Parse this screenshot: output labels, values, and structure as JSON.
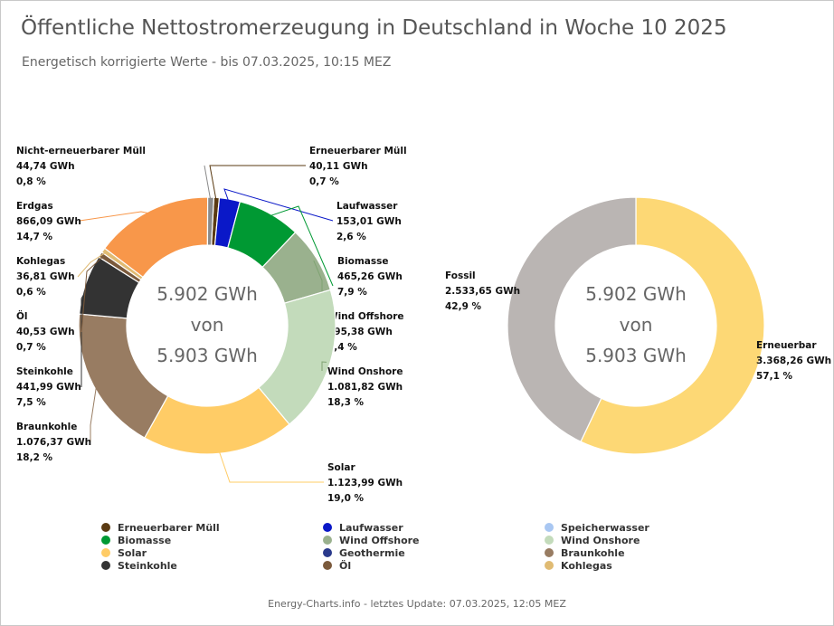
{
  "title": "Öffentliche Nettostromerzeugung in Deutschland in Woche 10 2025",
  "subtitle": "Energetisch korrigierte Werte - bis 07.03.2025, 10:15 MEZ",
  "footer": "Energy-Charts.info - letztes Update: 07.03.2025, 12:05 MEZ",
  "chart_data": [
    {
      "type": "pie",
      "center_text": [
        "5.902 GWh",
        "von",
        "5.903 GWh"
      ],
      "slices": [
        {
          "name": "Erneuerbarer Müll",
          "value": "40,11 GWh",
          "percent": "0,7 %",
          "v": 40.11,
          "color": "#5a3a12"
        },
        {
          "name": "Laufwasser",
          "value": "153,01 GWh",
          "percent": "2,6 %",
          "v": 153.01,
          "color": "#0a18c8"
        },
        {
          "name": "Biomasse",
          "value": "465,26 GWh",
          "percent": "7,9 %",
          "v": 465.26,
          "color": "#009933"
        },
        {
          "name": "Wind Offshore",
          "value": "495,38 GWh",
          "percent": "8,4 %",
          "v": 495.38,
          "color": "#9ab18e"
        },
        {
          "name": "Wind Onshore",
          "value": "1.081,82 GWh",
          "percent": "18,3 %",
          "v": 1081.82,
          "color": "#c3dbbb"
        },
        {
          "name": "Solar",
          "value": "1.123,99 GWh",
          "percent": "19,0 %",
          "v": 1123.99,
          "color": "#ffcc66"
        },
        {
          "name": "Braunkohle",
          "value": "1.076,37 GWh",
          "percent": "18,2 %",
          "v": 1076.37,
          "color": "#987c62"
        },
        {
          "name": "Steinkohle",
          "value": "441,99 GWh",
          "percent": "7,5 %",
          "v": 441.99,
          "color": "#333333"
        },
        {
          "name": "Öl",
          "value": "40,53 GWh",
          "percent": "0,7 %",
          "v": 40.53,
          "color": "#7b5a3c"
        },
        {
          "name": "Kohlegas",
          "value": "36,81 GWh",
          "percent": "0,6 %",
          "v": 36.81,
          "color": "#e0bb73"
        },
        {
          "name": "Erdgas",
          "value": "866,09 GWh",
          "percent": "14,7 %",
          "v": 866.09,
          "color": "#f8974a"
        },
        {
          "name": "Nicht-erneuerbarer Müll",
          "value": "44,74 GWh",
          "percent": "0,8 %",
          "v": 44.74,
          "color": "#8a8a8a"
        }
      ]
    },
    {
      "type": "pie",
      "center_text": [
        "5.902 GWh",
        "von",
        "5.903 GWh"
      ],
      "slices": [
        {
          "name": "Erneuerbar",
          "value": "3.368,26 GWh",
          "percent": "57,1 %",
          "v": 3368.26,
          "color": "#fdd875"
        },
        {
          "name": "Fossil",
          "value": "2.533,65 GWh",
          "percent": "42,9 %",
          "v": 2533.65,
          "color": "#bab5b3"
        }
      ]
    }
  ],
  "legend": [
    {
      "label": "Erneuerbarer Müll",
      "color": "#5a3a12"
    },
    {
      "label": "Laufwasser",
      "color": "#0a18c8"
    },
    {
      "label": "Speicherwasser",
      "color": "#a9c7f2"
    },
    {
      "label": "Biomasse",
      "color": "#009933"
    },
    {
      "label": "Wind Offshore",
      "color": "#9ab18e"
    },
    {
      "label": "Wind Onshore",
      "color": "#c3dbbb"
    },
    {
      "label": "Solar",
      "color": "#ffcc66"
    },
    {
      "label": "Geothermie",
      "color": "#2a3a8c"
    },
    {
      "label": "Braunkohle",
      "color": "#987c62"
    },
    {
      "label": "Steinkohle",
      "color": "#333333"
    },
    {
      "label": "Öl",
      "color": "#7b5a3c"
    },
    {
      "label": "Kohlegas",
      "color": "#e0bb73"
    }
  ]
}
